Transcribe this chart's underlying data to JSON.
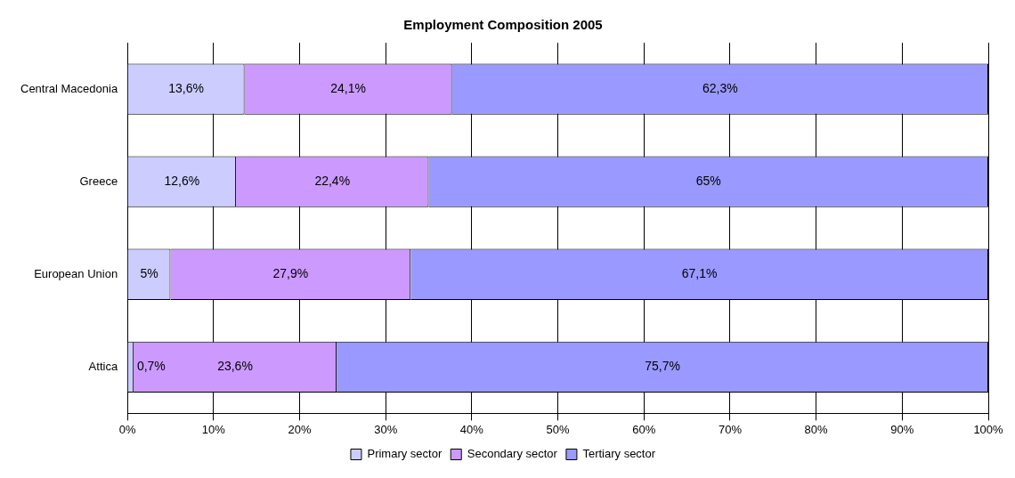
{
  "chart_data": {
    "type": "bar",
    "title": "Employment Composition 2005",
    "orientation": "horizontal",
    "stacked": true,
    "categories": [
      "Central Macedonia",
      "Greece",
      "European Union",
      "Attica"
    ],
    "series": [
      {
        "name": "Primary sector",
        "color": "#ccccff",
        "values": [
          13.6,
          12.6,
          5,
          0.7
        ],
        "value_labels": [
          "13,6%",
          "12,6%",
          "5%",
          "0,7%"
        ]
      },
      {
        "name": "Secondary sector",
        "color": "#cc99ff",
        "values": [
          24.1,
          22.4,
          27.9,
          23.6
        ],
        "value_labels": [
          "24,1%",
          "22,4%",
          "27,9%",
          "23,6%"
        ]
      },
      {
        "name": "Tertiary sector",
        "color": "#9999ff",
        "values": [
          62.3,
          65,
          67.1,
          75.7
        ],
        "value_labels": [
          "62,3%",
          "65%",
          "67,1%",
          "75,7%"
        ]
      }
    ],
    "xlim": [
      0,
      100
    ],
    "xticks": [
      {
        "value": 0,
        "label": "0%"
      },
      {
        "value": 10,
        "label": "10%"
      },
      {
        "value": 20,
        "label": "20%"
      },
      {
        "value": 30,
        "label": "30%"
      },
      {
        "value": 40,
        "label": "40%"
      },
      {
        "value": 50,
        "label": "50%"
      },
      {
        "value": 60,
        "label": "60%"
      },
      {
        "value": 70,
        "label": "70%"
      },
      {
        "value": 80,
        "label": "80%"
      },
      {
        "value": 90,
        "label": "90%"
      },
      {
        "value": 100,
        "label": "100%"
      }
    ],
    "grid": "x",
    "legend": "bottom"
  }
}
